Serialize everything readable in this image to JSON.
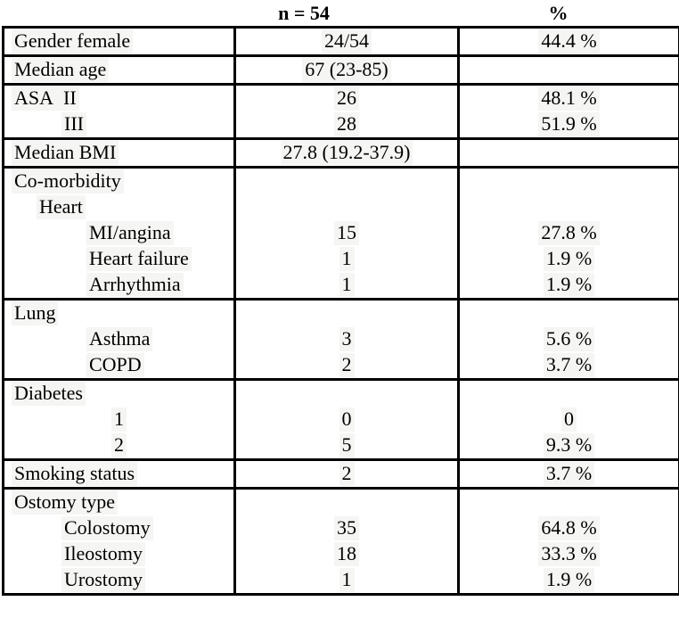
{
  "header": {
    "n_label": "n = 54",
    "percent_label": "%"
  },
  "table": {
    "rows": [
      {
        "label": "Gender female",
        "n": "24/54",
        "pct": "44.4 %",
        "indent": 0,
        "section_start": true
      },
      {
        "label": "Median age",
        "n": "67 (23-85)",
        "pct": "",
        "indent": 0,
        "section_start": true
      },
      {
        "label": "ASA  II",
        "n": "26",
        "pct": "48.1 %",
        "indent": 0,
        "section_start": true
      },
      {
        "label": "III",
        "n": "28",
        "pct": "51.9 %",
        "indent": 2,
        "section_start": false
      },
      {
        "label": "Median BMI",
        "n": "27.8 (19.2-37.9)",
        "pct": "",
        "indent": 0,
        "section_start": true
      },
      {
        "label": "Co-morbidity",
        "n": "",
        "pct": "",
        "indent": 0,
        "section_start": true
      },
      {
        "label": "Heart",
        "n": "",
        "pct": "",
        "indent": 1,
        "section_start": false
      },
      {
        "label": "MI/angina",
        "n": "15",
        "pct": "27.8 %",
        "indent": 3,
        "section_start": false
      },
      {
        "label": "Heart failure",
        "n": "1",
        "pct": "1.9 %",
        "indent": 3,
        "section_start": false
      },
      {
        "label": "Arrhythmia",
        "n": "1",
        "pct": "1.9 %",
        "indent": 3,
        "section_start": false
      },
      {
        "label": "Lung",
        "n": "",
        "pct": "",
        "indent": 0,
        "section_start": true
      },
      {
        "label": "Asthma",
        "n": "3",
        "pct": "5.6 %",
        "indent": 3,
        "section_start": false
      },
      {
        "label": "COPD",
        "n": "2",
        "pct": "3.7 %",
        "indent": 3,
        "section_start": false
      },
      {
        "label": "Diabetes",
        "n": "",
        "pct": "",
        "indent": 0,
        "section_start": true
      },
      {
        "label": "1",
        "n": "0",
        "pct": "0",
        "indent": 4,
        "section_start": false
      },
      {
        "label": "2",
        "n": "5",
        "pct": "9.3 %",
        "indent": 4,
        "section_start": false
      },
      {
        "label": "Smoking status",
        "n": "2",
        "pct": "3.7 %",
        "indent": 0,
        "section_start": true
      },
      {
        "label": "Ostomy type",
        "n": "",
        "pct": "",
        "indent": 0,
        "section_start": true
      },
      {
        "label": "Colostomy",
        "n": "35",
        "pct": "64.8 %",
        "indent": 2,
        "section_start": false
      },
      {
        "label": "Ileostomy",
        "n": "18",
        "pct": "33.3 %",
        "indent": 2,
        "section_start": false
      },
      {
        "label": "Urostomy",
        "n": "1",
        "pct": "1.9 %",
        "indent": 2,
        "section_start": false
      }
    ]
  }
}
